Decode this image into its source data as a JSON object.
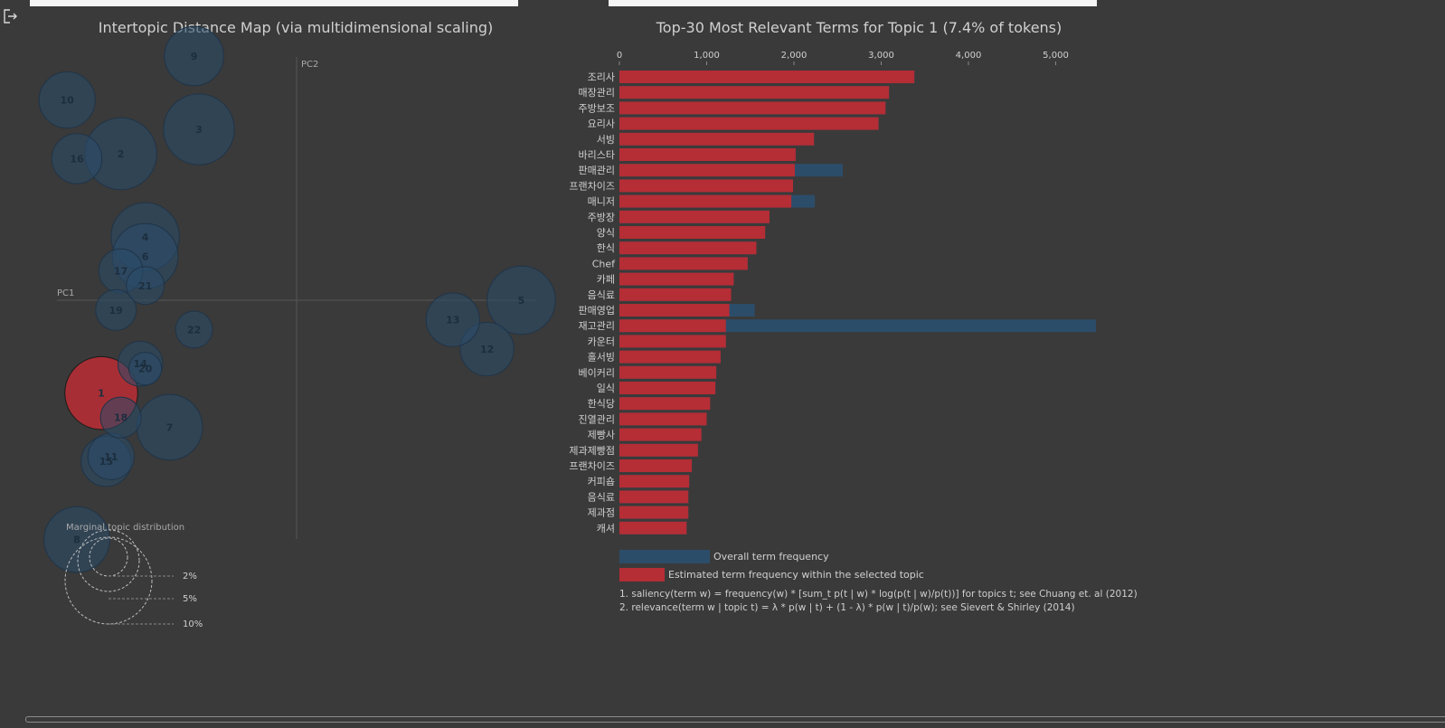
{
  "left_panel": {
    "title": "Intertopic Distance Map (via multidimensional scaling)",
    "axis_x_label": "PC1",
    "axis_y_label": "PC2",
    "marginal_title": "Marginal topic distribution",
    "marginal_ticks": [
      "2%",
      "5%",
      "10%"
    ]
  },
  "right_panel": {
    "title": "Top-30 Most Relevant Terms for Topic 1 (7.4% of tokens)",
    "legend_overall": "Overall term frequency",
    "legend_topic": "Estimated term frequency within the selected topic",
    "note1": "1. saliency(term w) = frequency(w) * [sum_t p(t | w) * log(p(t | w)/p(t))] for topics t; see Chuang et. al (2012)",
    "note2": "2. relevance(term w | topic t) = λ * p(w | t) + (1 - λ) * p(w | t)/p(w); see Sievert & Shirley (2014)"
  },
  "colors": {
    "background": "#3a3a3a",
    "bubble": "#2a4d69",
    "bubble_stroke": "#1f3448",
    "selected": "#b52d35",
    "overall_bar": "#2c4d6a",
    "topic_bar": "#b52d35"
  },
  "icons": {
    "top_left": "exit-icon"
  },
  "chart_data": [
    {
      "type": "scatter",
      "title": "Intertopic Distance Map (via multidimensional scaling)",
      "xlabel": "PC1",
      "ylabel": "PC2",
      "selected_topic": "1",
      "topics": [
        {
          "id": "1",
          "pc1": -0.4,
          "pc2": -0.19,
          "size": 7.4
        },
        {
          "id": "2",
          "pc1": -0.36,
          "pc2": 0.3,
          "size": 7.2
        },
        {
          "id": "3",
          "pc1": -0.2,
          "pc2": 0.35,
          "size": 7.0
        },
        {
          "id": "4",
          "pc1": -0.31,
          "pc2": 0.13,
          "size": 6.5
        },
        {
          "id": "5",
          "pc1": 0.46,
          "pc2": 0.0,
          "size": 6.5
        },
        {
          "id": "6",
          "pc1": -0.31,
          "pc2": 0.09,
          "size": 6.0
        },
        {
          "id": "7",
          "pc1": -0.26,
          "pc2": -0.26,
          "size": 6.0
        },
        {
          "id": "8",
          "pc1": -0.45,
          "pc2": -0.49,
          "size": 6.0
        },
        {
          "id": "9",
          "pc1": -0.21,
          "pc2": 0.5,
          "size": 4.9
        },
        {
          "id": "10",
          "pc1": -0.47,
          "pc2": 0.41,
          "size": 4.4
        },
        {
          "id": "11",
          "pc1": -0.38,
          "pc2": -0.32,
          "size": 3.0
        },
        {
          "id": "12",
          "pc1": 0.39,
          "pc2": -0.1,
          "size": 4.0
        },
        {
          "id": "13",
          "pc1": 0.32,
          "pc2": -0.04,
          "size": 4.0
        },
        {
          "id": "14",
          "pc1": -0.32,
          "pc2": -0.13,
          "size": 2.8
        },
        {
          "id": "15",
          "pc1": -0.39,
          "pc2": -0.33,
          "size": 3.5
        },
        {
          "id": "16",
          "pc1": -0.45,
          "pc2": 0.29,
          "size": 3.5
        },
        {
          "id": "17",
          "pc1": -0.36,
          "pc2": 0.06,
          "size": 2.7
        },
        {
          "id": "18",
          "pc1": -0.36,
          "pc2": -0.24,
          "size": 2.3
        },
        {
          "id": "19",
          "pc1": -0.37,
          "pc2": -0.02,
          "size": 2.3
        },
        {
          "id": "20",
          "pc1": -0.31,
          "pc2": -0.14,
          "size": 1.5
        },
        {
          "id": "21",
          "pc1": -0.31,
          "pc2": 0.03,
          "size": 2.0
        },
        {
          "id": "22",
          "pc1": -0.21,
          "pc2": -0.06,
          "size": 1.9
        }
      ]
    },
    {
      "type": "bar",
      "title": "Top-30 Most Relevant Terms for Topic 1 (7.4% of tokens)",
      "orientation": "horizontal",
      "xlim": [
        0,
        5500
      ],
      "xticks": [
        "0",
        "1,000",
        "2,000",
        "3,000",
        "4,000",
        "5,000"
      ],
      "xtick_values": [
        0,
        1000,
        2000,
        3000,
        4000,
        5000
      ],
      "categories": [
        "조리사",
        "매장관리",
        "주방보조",
        "요리사",
        "서빙",
        "바리스타",
        "판매관리",
        "프랜차이즈",
        "매니저",
        "주방장",
        "양식",
        "한식",
        "Chef",
        "카페",
        "음식료",
        "판매영업",
        "재고관리",
        "카운터",
        "홀서빙",
        "베이커리",
        "일식",
        "한식당",
        "진열관리",
        "제빵사",
        "제과제빵점",
        "프랜차이즈",
        "커피숍",
        "음식료",
        "제과점",
        "캐셔"
      ],
      "series": [
        {
          "name": "Overall term frequency",
          "values": [
            3380,
            3090,
            3050,
            2970,
            2230,
            2020,
            2560,
            1990,
            2240,
            1720,
            1670,
            1570,
            1470,
            1310,
            1280,
            1550,
            5460,
            1220,
            1160,
            1110,
            1100,
            1040,
            1000,
            940,
            900,
            830,
            800,
            790,
            790,
            770
          ]
        },
        {
          "name": "Estimated term frequency within the selected topic",
          "values": [
            3380,
            3090,
            3050,
            2970,
            2230,
            2020,
            2010,
            1990,
            1970,
            1720,
            1670,
            1570,
            1470,
            1310,
            1280,
            1260,
            1220,
            1220,
            1160,
            1110,
            1100,
            1040,
            1000,
            940,
            900,
            830,
            800,
            790,
            790,
            770
          ]
        }
      ]
    }
  ]
}
